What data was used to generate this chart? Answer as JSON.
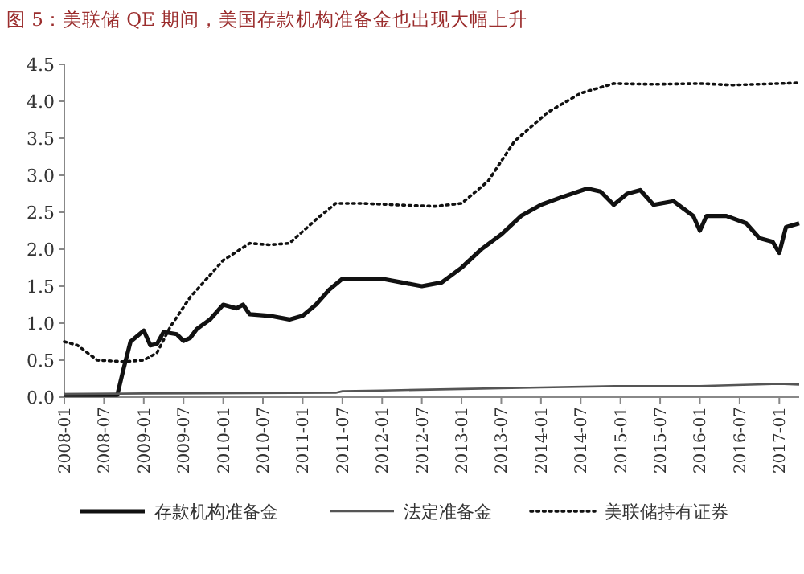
{
  "chart_data": {
    "type": "line",
    "title": "图 5：美联储 QE 期间，美国存款机构准备金也出现大幅上升",
    "xlim": [
      "2008-01",
      "2017-04"
    ],
    "xticks": [
      "2008-01",
      "2008-07",
      "2009-01",
      "2009-07",
      "2010-01",
      "2010-07",
      "2011-01",
      "2011-07",
      "2012-01",
      "2012-07",
      "2013-01",
      "2013-07",
      "2014-01",
      "2014-07",
      "2015-01",
      "2015-07",
      "2016-01",
      "2016-07",
      "2017-01"
    ],
    "ylim": [
      0,
      4.5
    ],
    "yticks": [
      {
        "value": 0,
        "label": "0.0"
      },
      {
        "value": 0.5,
        "label": "0.5"
      },
      {
        "value": 1,
        "label": "1.0"
      },
      {
        "value": 1.5,
        "label": "1.5"
      },
      {
        "value": 2,
        "label": "2.0"
      },
      {
        "value": 2.5,
        "label": "2.5"
      },
      {
        "value": 3,
        "label": "3.0"
      },
      {
        "value": 3.5,
        "label": "3.5"
      },
      {
        "value": 4,
        "label": "4.0"
      },
      {
        "value": 4.5,
        "label": "4.5"
      }
    ],
    "legend": "bottom",
    "series": [
      {
        "name": "存款机构准备金",
        "color": "#111111",
        "line_style": "solid",
        "x": [
          "2008-01",
          "2008-09",
          "2008-10",
          "2008-11",
          "2009-01",
          "2009-02",
          "2009-03",
          "2009-04",
          "2009-06",
          "2009-07",
          "2009-08",
          "2009-09",
          "2009-11",
          "2010-01",
          "2010-03",
          "2010-04",
          "2010-05",
          "2010-08",
          "2010-11",
          "2011-01",
          "2011-03",
          "2011-05",
          "2011-07",
          "2011-10",
          "2012-01",
          "2012-04",
          "2012-07",
          "2012-10",
          "2013-01",
          "2013-04",
          "2013-07",
          "2013-10",
          "2014-01",
          "2014-04",
          "2014-08",
          "2014-10",
          "2014-12",
          "2015-02",
          "2015-04",
          "2015-06",
          "2015-09",
          "2015-12",
          "2016-01",
          "2016-02",
          "2016-05",
          "2016-08",
          "2016-10",
          "2016-12",
          "2017-01",
          "2017-02",
          "2017-04"
        ],
        "values": [
          0.03,
          0.03,
          0.4,
          0.75,
          0.9,
          0.7,
          0.72,
          0.88,
          0.85,
          0.76,
          0.8,
          0.92,
          1.05,
          1.25,
          1.2,
          1.25,
          1.12,
          1.1,
          1.05,
          1.1,
          1.25,
          1.45,
          1.6,
          1.6,
          1.6,
          1.55,
          1.5,
          1.55,
          1.75,
          2.0,
          2.2,
          2.45,
          2.6,
          2.7,
          2.82,
          2.78,
          2.6,
          2.75,
          2.8,
          2.6,
          2.65,
          2.45,
          2.25,
          2.45,
          2.45,
          2.35,
          2.15,
          2.1,
          1.95,
          2.3,
          2.35
        ]
      },
      {
        "name": "法定准备金",
        "color": "#555555",
        "line_style": "solid",
        "x": [
          "2008-01",
          "2009-01",
          "2011-06",
          "2011-07",
          "2012-01",
          "2013-01",
          "2014-01",
          "2015-01",
          "2016-01",
          "2017-01",
          "2017-04"
        ],
        "values": [
          0.04,
          0.05,
          0.06,
          0.08,
          0.09,
          0.11,
          0.13,
          0.15,
          0.15,
          0.18,
          0.17
        ]
      },
      {
        "name": "美联储持有证券",
        "color": "#111111",
        "line_style": "dotted",
        "x": [
          "2008-01",
          "2008-03",
          "2008-06",
          "2008-10",
          "2009-01",
          "2009-03",
          "2009-05",
          "2009-08",
          "2010-01",
          "2010-05",
          "2010-08",
          "2010-11",
          "2011-03",
          "2011-06",
          "2011-10",
          "2012-03",
          "2012-09",
          "2013-01",
          "2013-05",
          "2013-09",
          "2014-02",
          "2014-07",
          "2014-12",
          "2015-06",
          "2016-01",
          "2016-06",
          "2017-01",
          "2017-04"
        ],
        "values": [
          0.75,
          0.7,
          0.5,
          0.48,
          0.5,
          0.6,
          0.95,
          1.35,
          1.85,
          2.08,
          2.06,
          2.08,
          2.4,
          2.62,
          2.62,
          2.6,
          2.58,
          2.62,
          2.92,
          3.46,
          3.85,
          4.11,
          4.24,
          4.23,
          4.24,
          4.22,
          4.24,
          4.25
        ]
      }
    ]
  }
}
